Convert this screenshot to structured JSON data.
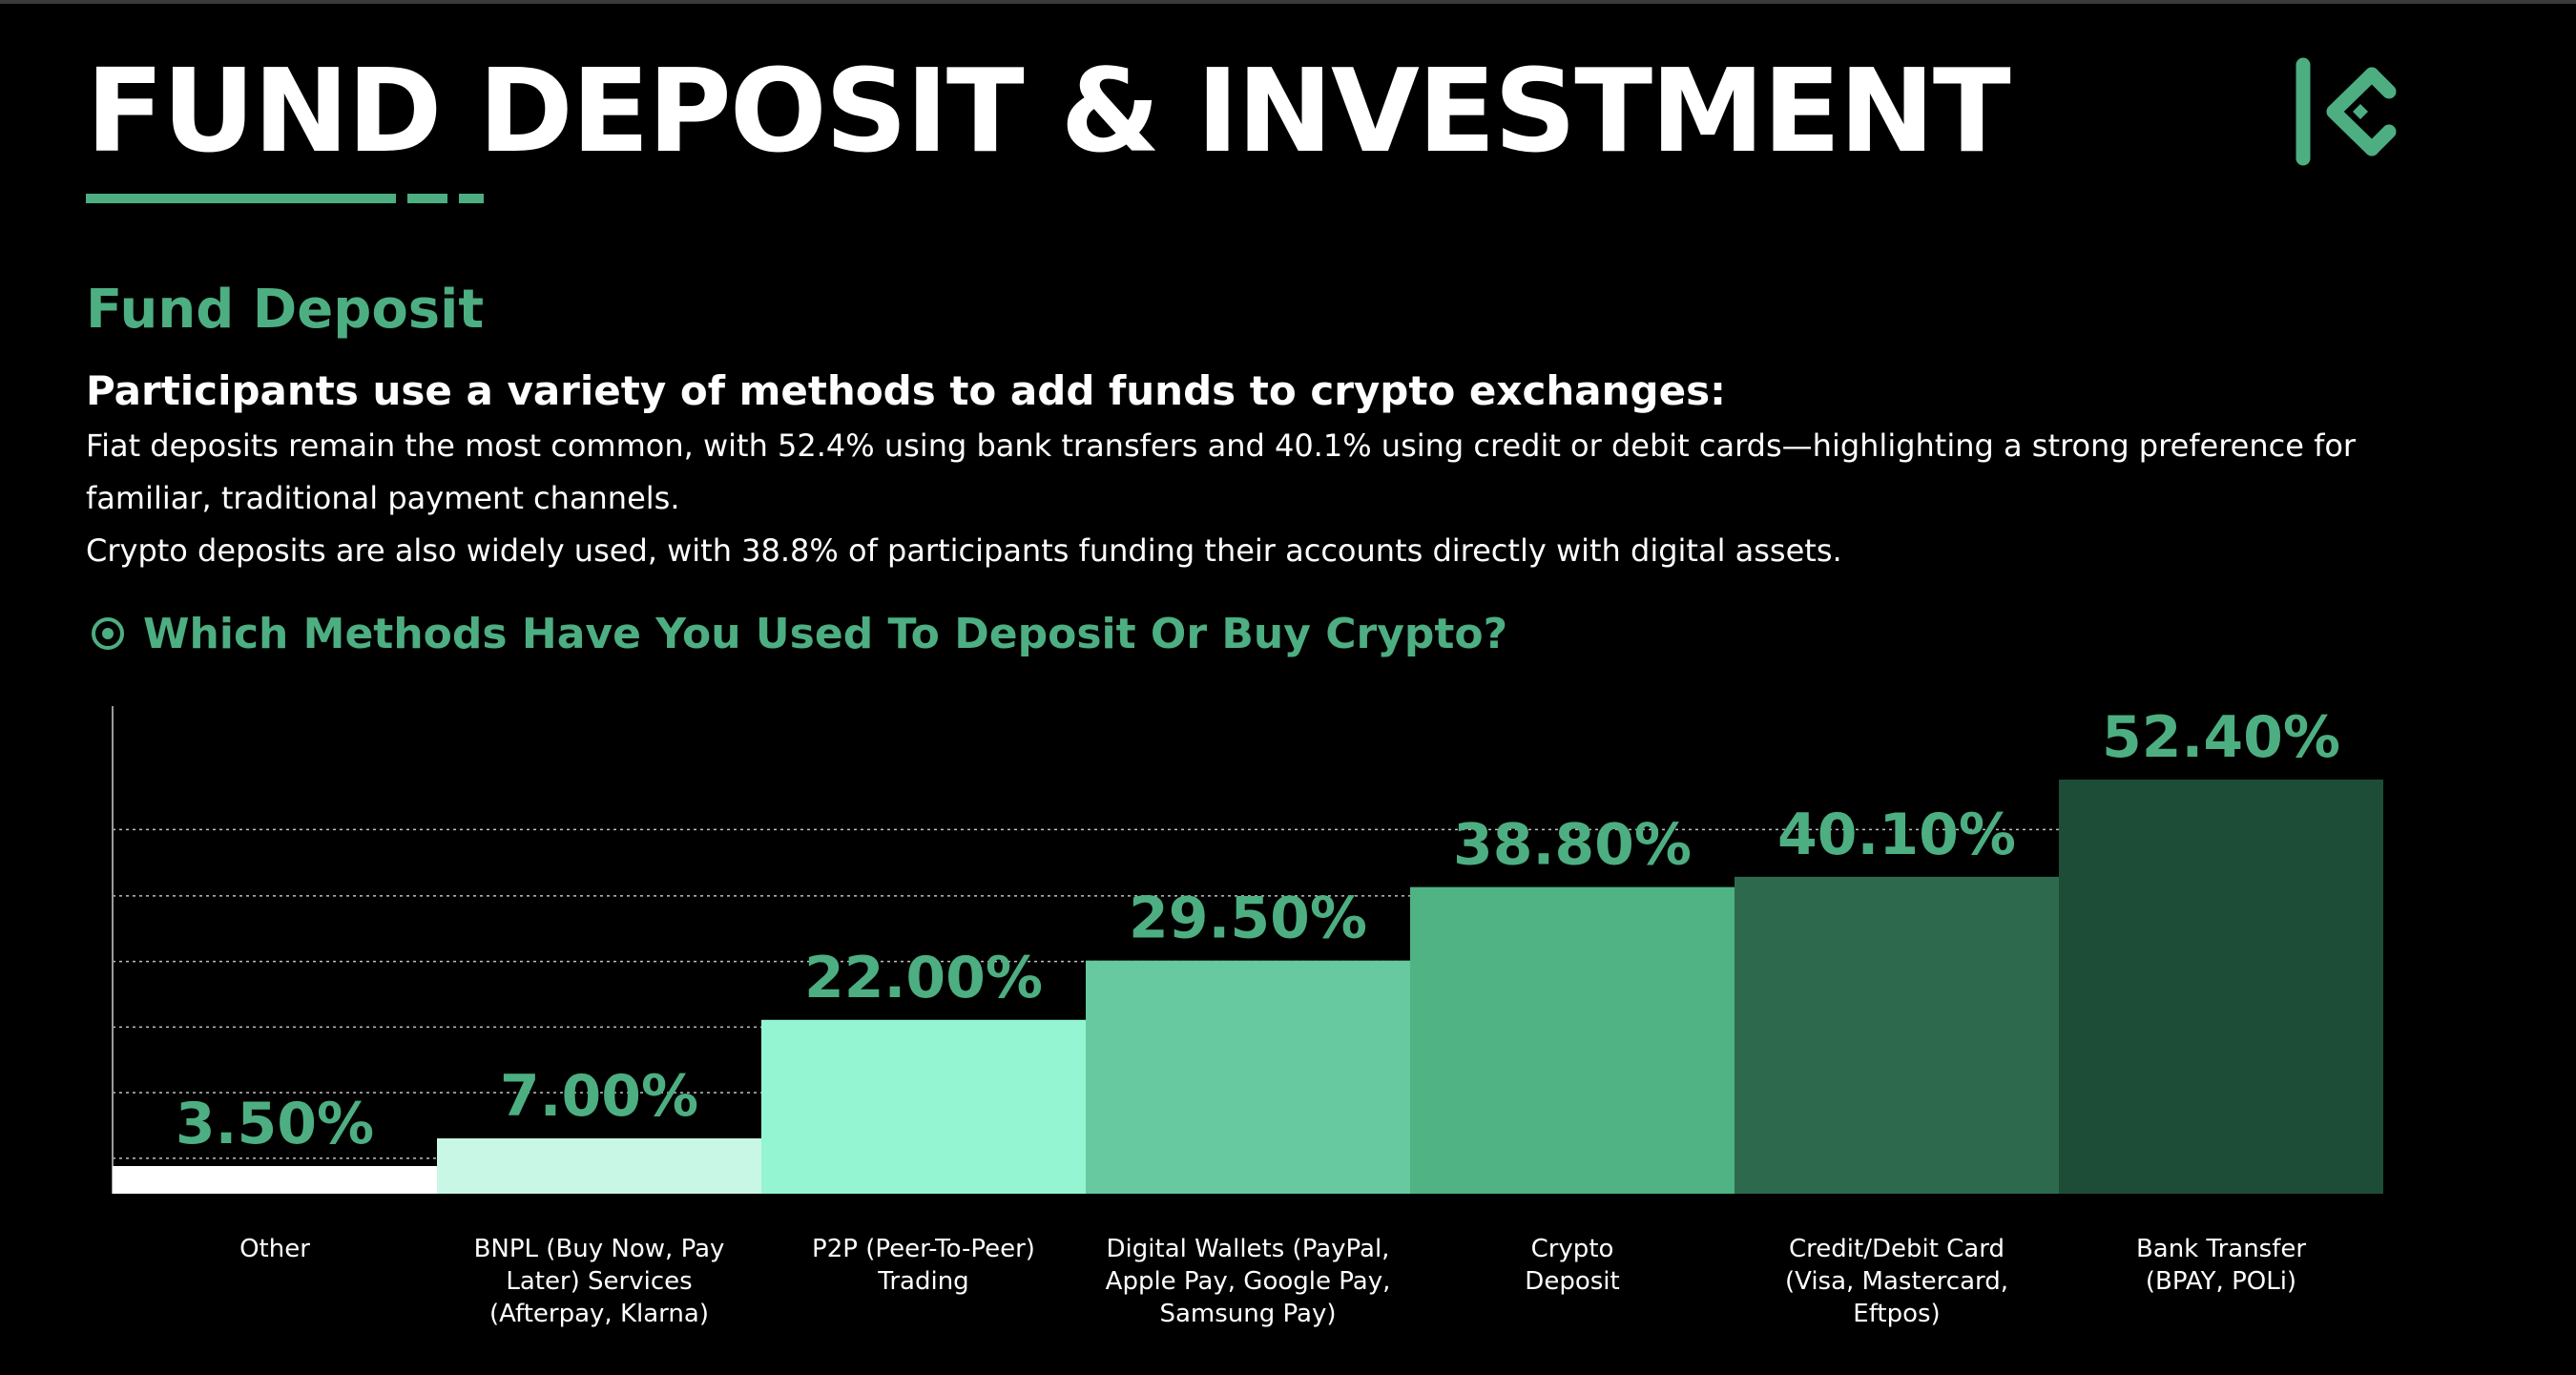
{
  "header": {
    "title": "FUND DEPOSIT & INVESTMENT",
    "accent_color": "#4dae82",
    "logo_icon": "kucoin-logo-icon"
  },
  "section": {
    "title": "Fund Deposit",
    "subheading": "Participants use a variety of methods to add funds to crypto exchanges:",
    "paragraph_1": "Fiat deposits remain the most common, with 52.4% using bank transfers and 40.1% using credit or debit cards—highlighting a strong preference for familiar, traditional payment channels.",
    "paragraph_2": "Crypto deposits are also widely used, with 38.8% of participants funding their accounts directly with digital assets."
  },
  "question": {
    "text": "Which Methods Have You Used To Deposit Or Buy Crypto?",
    "icon": "radio-selected-icon"
  },
  "chart_data": {
    "type": "bar",
    "categories": [
      "Other",
      "BNPL (Buy Now, Pay Later) Services (Afterpay, Klarna)",
      "P2P (Peer-To-Peer) Trading",
      "Digital Wallets (PayPal, Apple Pay, Google Pay, Samsung Pay)",
      "Crypto Deposit",
      "Credit/Debit Card (Visa, Mastercard, Eftpos)",
      "Bank Transfer (BPAY, POLi)"
    ],
    "category_lines": [
      [
        "Other"
      ],
      [
        "BNPL (Buy Now, Pay",
        "Later) Services",
        "(Afterpay, Klarna)"
      ],
      [
        "P2P (Peer-To-Peer)",
        "Trading"
      ],
      [
        "Digital Wallets (PayPal,",
        "Apple Pay, Google Pay,",
        "Samsung Pay)"
      ],
      [
        "Crypto",
        "Deposit"
      ],
      [
        "Credit/Debit Card",
        "(Visa, Mastercard,",
        "Eftpos)"
      ],
      [
        "Bank Transfer",
        "(BPAY, POLi)"
      ]
    ],
    "values": [
      3.5,
      7.0,
      22.0,
      29.5,
      38.8,
      40.1,
      52.4
    ],
    "value_labels": [
      "3.50%",
      "7.00%",
      "22.00%",
      "29.50%",
      "38.80%",
      "40.10%",
      "52.40%"
    ],
    "bar_colors": [
      "#ffffff",
      "#c9f7e6",
      "#94f5d3",
      "#66c9a0",
      "#4fb383",
      "#2d6a4d",
      "#1e4d37"
    ],
    "label_color": "#4dae82",
    "ylim": [
      0,
      60
    ],
    "grid": true,
    "title": "",
    "xlabel": "",
    "ylabel": ""
  }
}
